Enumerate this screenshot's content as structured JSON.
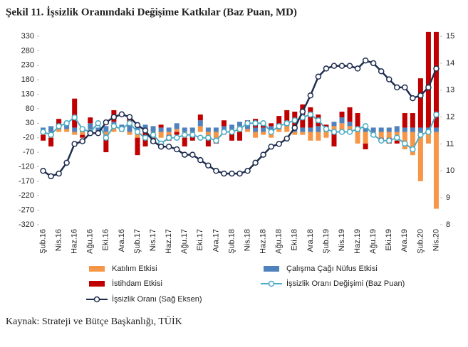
{
  "chart_data": {
    "type": "combo",
    "title": "Şekil 11. İşsizlik Oranındaki Değişime Katkılar (Baz Puan, MD)",
    "source": "Kaynak: Strateji ve Bütçe Başkanlığı, TÜİK",
    "categories": [
      "Şub.16",
      null,
      "Nis.16",
      null,
      "Haz.16",
      null,
      "Ağu.16",
      null,
      "Eki.16",
      null,
      "Ara.16",
      null,
      "Şub.17",
      null,
      "Nis.17",
      null,
      "Haz.17",
      null,
      "Ağu.17",
      null,
      "Eki.17",
      null,
      "Ara.17",
      null,
      "Şub.18",
      null,
      "Nis.18",
      null,
      "Haz.18",
      null,
      "Ağu.18",
      null,
      "Eki.18",
      null,
      "Ara.18",
      null,
      "Şub.19",
      null,
      "Nis.19",
      null,
      "Haz.19",
      null,
      "Ağu.19",
      null,
      "Eki.19",
      null,
      "Ara.19",
      null,
      "Şub.20",
      null,
      "Nis.20"
    ],
    "stacked": true,
    "series": [
      {
        "name": "Katılım Etkisi",
        "kind": "bar",
        "color": "#f79646",
        "values": [
          -10,
          -20,
          10,
          10,
          -10,
          -10,
          10,
          -10,
          -10,
          20,
          10,
          -10,
          -20,
          10,
          -20,
          -20,
          -10,
          10,
          -20,
          -10,
          20,
          -20,
          -30,
          -10,
          10,
          20,
          10,
          -20,
          -10,
          -20,
          10,
          20,
          -10,
          -10,
          -30,
          -30,
          -20,
          20,
          30,
          20,
          -40,
          -40,
          -10,
          -20,
          -20,
          -30,
          -60,
          -80,
          -170,
          -40,
          -265
        ]
      },
      {
        "name": "Çalışma Çağı Nüfus Etkisi",
        "kind": "bar",
        "color": "#4f81bd",
        "values": [
          15,
          20,
          15,
          20,
          15,
          15,
          20,
          15,
          20,
          15,
          15,
          20,
          15,
          15,
          20,
          15,
          15,
          20,
          15,
          15,
          20,
          15,
          15,
          20,
          15,
          15,
          20,
          15,
          15,
          20,
          15,
          15,
          20,
          15,
          15,
          20,
          15,
          15,
          20,
          15,
          15,
          20,
          15,
          15,
          15,
          20,
          15,
          15,
          15,
          15,
          15
        ]
      },
      {
        "name": "İstihdam Etkisi",
        "kind": "bar",
        "color": "#c00000",
        "values": [
          -20,
          -30,
          20,
          0,
          100,
          -10,
          20,
          0,
          -60,
          40,
          0,
          30,
          -60,
          -50,
          -20,
          10,
          -20,
          -10,
          -30,
          -20,
          20,
          -30,
          -10,
          20,
          -30,
          -30,
          10,
          30,
          20,
          10,
          30,
          40,
          50,
          80,
          70,
          40,
          10,
          -50,
          20,
          50,
          50,
          -20,
          0,
          -10,
          -20,
          -10,
          50,
          50,
          170,
          330,
          330
        ]
      },
      {
        "name": "İşsizlik Oranı Değişimi (Baz Puan)",
        "kind": "line",
        "color": "#4bacc6",
        "values": [
          0,
          -10,
          20,
          30,
          50,
          10,
          0,
          30,
          -20,
          20,
          10,
          30,
          0,
          -20,
          -10,
          -40,
          -20,
          -20,
          -10,
          -10,
          -20,
          -20,
          -30,
          0,
          0,
          10,
          30,
          30,
          30,
          0,
          20,
          30,
          40,
          50,
          60,
          40,
          10,
          0,
          0,
          0,
          10,
          20,
          -10,
          -30,
          -30,
          -20,
          -40,
          -60,
          -10,
          0,
          60
        ]
      },
      {
        "name": "İşsizlik Oranı (Sağ Eksen)",
        "kind": "line",
        "axis": "y2",
        "color": "#1f2d4f",
        "values": [
          10.0,
          9.8,
          9.9,
          10.3,
          11.0,
          11.1,
          11.4,
          11.4,
          11.8,
          12.0,
          12.1,
          12.0,
          11.7,
          11.5,
          11.1,
          10.9,
          10.9,
          10.8,
          10.6,
          10.6,
          10.4,
          10.2,
          10.0,
          9.9,
          9.9,
          9.9,
          10.0,
          10.3,
          10.6,
          10.9,
          11.0,
          11.2,
          11.6,
          12.2,
          12.8,
          13.5,
          13.8,
          13.9,
          13.9,
          13.9,
          13.8,
          14.1,
          14.0,
          13.7,
          13.4,
          13.1,
          13.1,
          12.7,
          12.8,
          13.1,
          13.8
        ]
      }
    ],
    "ylim": [
      -320,
      330
    ],
    "yticks": [
      330,
      280,
      230,
      180,
      130,
      80,
      30,
      -20,
      -70,
      -120,
      -170,
      -220,
      -270,
      -320
    ],
    "y2lim": [
      8,
      15
    ],
    "y2ticks": [
      8,
      9,
      10,
      11,
      12,
      13,
      14,
      15
    ],
    "grid": false
  }
}
